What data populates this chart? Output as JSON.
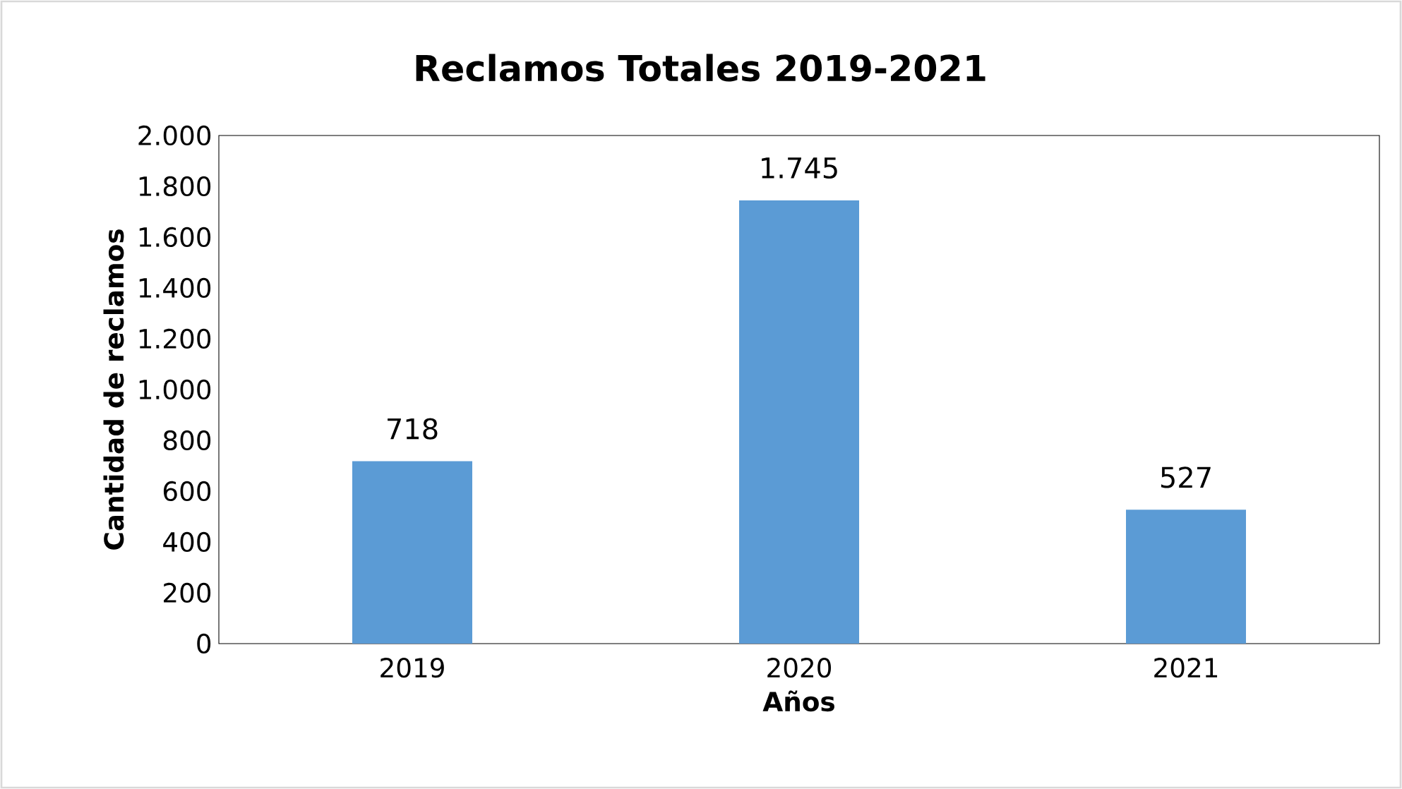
{
  "chart_data": {
    "type": "bar",
    "title": "Reclamos Totales 2019-2021",
    "xlabel": "Años",
    "ylabel": "Cantidad de reclamos",
    "categories": [
      "2019",
      "2020",
      "2021"
    ],
    "values": [
      718,
      1745,
      527
    ],
    "value_labels": [
      "718",
      "1.745",
      "527"
    ],
    "color": "#5b9bd5",
    "ylim": [
      0,
      2000
    ],
    "yticks": [
      {
        "value": 0,
        "label": "0"
      },
      {
        "value": 200,
        "label": "200"
      },
      {
        "value": 400,
        "label": "400"
      },
      {
        "value": 600,
        "label": "600"
      },
      {
        "value": 800,
        "label": "800"
      },
      {
        "value": 1000,
        "label": "1.000"
      },
      {
        "value": 1200,
        "label": "1.200"
      },
      {
        "value": 1400,
        "label": "1.400"
      },
      {
        "value": 1600,
        "label": "1.600"
      },
      {
        "value": 1800,
        "label": "1.800"
      },
      {
        "value": 2000,
        "label": "2.000"
      }
    ],
    "grid": false
  }
}
